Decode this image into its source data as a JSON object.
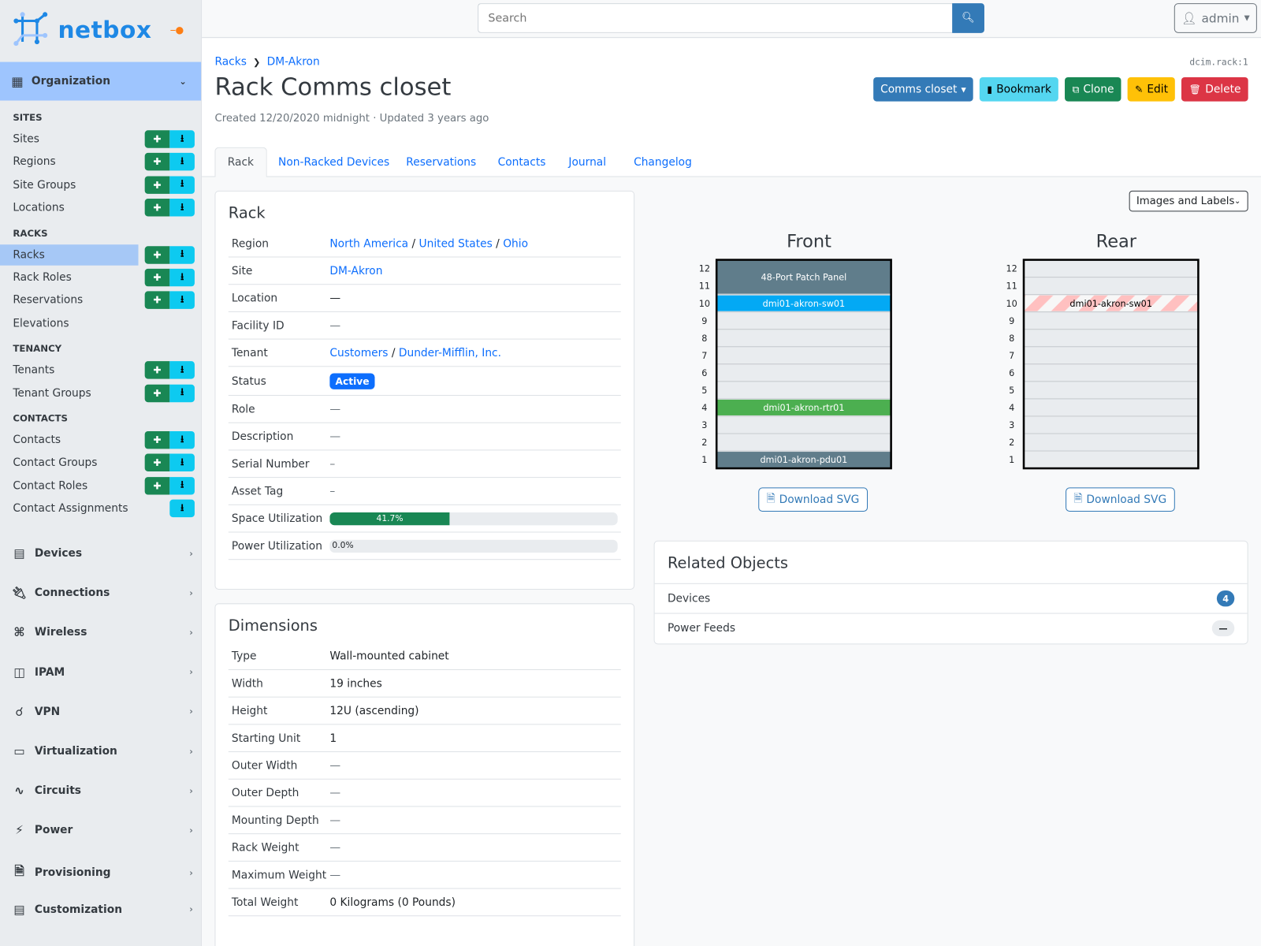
{
  "brand": {
    "name": "netbox"
  },
  "sidebar": {
    "open_group": "Organization",
    "sections": [
      {
        "heading": "SITES",
        "items": [
          {
            "label": "Sites",
            "add": true,
            "import": true
          },
          {
            "label": "Regions",
            "add": true,
            "import": true
          },
          {
            "label": "Site Groups",
            "add": true,
            "import": true
          },
          {
            "label": "Locations",
            "add": true,
            "import": true
          }
        ]
      },
      {
        "heading": "RACKS",
        "items": [
          {
            "label": "Racks",
            "add": true,
            "import": true,
            "active": true
          },
          {
            "label": "Rack Roles",
            "add": true,
            "import": true
          },
          {
            "label": "Reservations",
            "add": true,
            "import": true
          },
          {
            "label": "Elevations",
            "add": false,
            "import": false
          }
        ]
      },
      {
        "heading": "TENANCY",
        "items": [
          {
            "label": "Tenants",
            "add": true,
            "import": true
          },
          {
            "label": "Tenant Groups",
            "add": true,
            "import": true
          }
        ]
      },
      {
        "heading": "CONTACTS",
        "items": [
          {
            "label": "Contacts",
            "add": true,
            "import": true
          },
          {
            "label": "Contact Groups",
            "add": true,
            "import": true
          },
          {
            "label": "Contact Roles",
            "add": true,
            "import": true
          },
          {
            "label": "Contact Assignments",
            "add": false,
            "import": true
          }
        ]
      }
    ],
    "groups": [
      {
        "label": "Devices",
        "icon": "server-icon"
      },
      {
        "label": "Connections",
        "icon": "plug-icon"
      },
      {
        "label": "Wireless",
        "icon": "wifi-icon"
      },
      {
        "label": "IPAM",
        "icon": "numeric-icon"
      },
      {
        "label": "VPN",
        "icon": "tree-icon"
      },
      {
        "label": "Virtualization",
        "icon": "monitor-icon"
      },
      {
        "label": "Circuits",
        "icon": "transit-icon"
      },
      {
        "label": "Power",
        "icon": "flash-icon"
      },
      {
        "label": "Provisioning",
        "icon": "file-icon"
      },
      {
        "label": "Customization",
        "icon": "toolbox-icon"
      }
    ]
  },
  "topbar": {
    "search_placeholder": "Search",
    "user": "admin"
  },
  "page": {
    "breadcrumb": [
      "Racks",
      "DM-Akron"
    ],
    "object_id": "dcim.rack:1",
    "title": "Rack Comms closet",
    "meta": "Created 12/20/2020 midnight · Updated 3 years ago",
    "actions": [
      {
        "label": "Comms closet",
        "color": "#337ab7",
        "text": "#fff",
        "icon": "",
        "caret": true
      },
      {
        "label": "Bookmark",
        "color": "#54d6f0",
        "text": "#000",
        "icon": "bookmark-icon"
      },
      {
        "label": "Clone",
        "color": "#198754",
        "text": "#fff",
        "icon": "clone-icon"
      },
      {
        "label": "Edit",
        "color": "#ffc107",
        "text": "#000",
        "icon": "pencil-icon"
      },
      {
        "label": "Delete",
        "color": "#dc3545",
        "text": "#fff",
        "icon": "trash-icon"
      }
    ],
    "tabs": [
      "Rack",
      "Non-Racked Devices",
      "Reservations",
      "Contacts",
      "Journal",
      "Changelog"
    ]
  },
  "rack_card": {
    "title": "Rack",
    "region": [
      "North America",
      "United States",
      "Ohio"
    ],
    "site": "DM-Akron",
    "location": "—",
    "facility_id": "—",
    "tenant": [
      "Customers",
      "Dunder-Mifflin, Inc."
    ],
    "status": "Active",
    "role": "—",
    "description": "—",
    "serial": "–",
    "asset_tag": "–",
    "space_util": 41.7,
    "space_util_label": "41.7%",
    "power_util": 0.0,
    "power_util_label": "0.0%",
    "labels": [
      "Region",
      "Site",
      "Location",
      "Facility ID",
      "Tenant",
      "Status",
      "Role",
      "Description",
      "Serial Number",
      "Asset Tag",
      "Space Utilization",
      "Power Utilization"
    ]
  },
  "dimensions": {
    "title": "Dimensions",
    "rows": [
      [
        "Type",
        "Wall-mounted cabinet"
      ],
      [
        "Width",
        "19 inches"
      ],
      [
        "Height",
        "12U (ascending)"
      ],
      [
        "Starting Unit",
        "1"
      ],
      [
        "Outer Width",
        "—"
      ],
      [
        "Outer Depth",
        "—"
      ],
      [
        "Mounting Depth",
        "—"
      ],
      [
        "Rack Weight",
        "—"
      ],
      [
        "Maximum Weight",
        "—"
      ],
      [
        "Total Weight",
        "0 Kilograms (0 Pounds)"
      ]
    ]
  },
  "elevation": {
    "view_select": "Images and Labels",
    "units": 12,
    "download_label": "Download SVG",
    "front": {
      "title": "Front",
      "devices": [
        {
          "name": "48-Port Patch Panel",
          "top": 12,
          "height": 2,
          "color": "#607d8b"
        },
        {
          "name": "dmi01-akron-sw01",
          "top": 10,
          "height": 1,
          "color": "#03a9f4"
        },
        {
          "name": "dmi01-akron-rtr01",
          "top": 4,
          "height": 1,
          "color": "#4caf50"
        },
        {
          "name": "dmi01-akron-pdu01",
          "top": 1,
          "height": 1,
          "color": "#607d8b"
        }
      ]
    },
    "rear": {
      "title": "Rear",
      "devices": [
        {
          "name": "dmi01-akron-sw01",
          "top": 10,
          "height": 1,
          "color": "striped"
        }
      ]
    }
  },
  "related": {
    "title": "Related Objects",
    "rows": [
      {
        "label": "Devices",
        "count": "4"
      },
      {
        "label": "Power Feeds",
        "count": "—"
      }
    ]
  }
}
